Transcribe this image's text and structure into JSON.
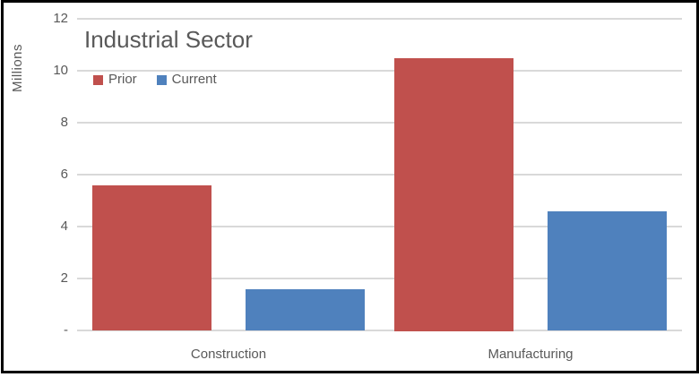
{
  "window": {
    "background": "#ffffff",
    "frame_border_color": "#000000"
  },
  "chart_data": {
    "type": "bar",
    "title": "Industrial Sector",
    "ylabel": "Millions",
    "xlabel": "",
    "categories": [
      "Construction",
      "Manufacturing"
    ],
    "series": [
      {
        "name": "Prior",
        "color": "#C0504D",
        "values": [
          5.6,
          10.5
        ]
      },
      {
        "name": "Current",
        "color": "#4F81BD",
        "values": [
          1.6,
          4.6
        ]
      }
    ],
    "ylim": [
      0,
      12
    ],
    "yticks": {
      "values": [
        12,
        10,
        8,
        6,
        4,
        2,
        0
      ],
      "labels": [
        "12",
        "10",
        "8",
        "6",
        "4",
        "2",
        "-"
      ]
    },
    "grid": true,
    "legend_position": "top-left",
    "gridline_color": "#D9D9D9",
    "text_color": "#595959",
    "title_color": "#595959"
  }
}
